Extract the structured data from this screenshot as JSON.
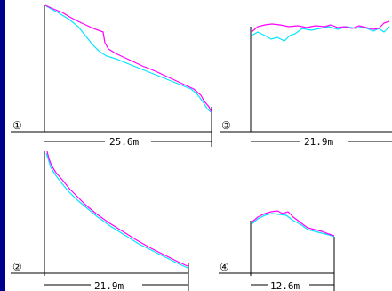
{
  "colors": {
    "background_frame": "#00008e",
    "panel": "#ffffff",
    "axis": "#000000",
    "series_magenta": "#ff00ff",
    "series_cyan": "#00e5ff"
  },
  "profiles": [
    {
      "id": "profile-1",
      "number": "①",
      "span_label": "25.6m"
    },
    {
      "id": "profile-2",
      "number": "②",
      "span_label": "21.9m"
    },
    {
      "id": "profile-3",
      "number": "③",
      "span_label": "21.9m"
    },
    {
      "id": "profile-4",
      "number": "④",
      "span_label": "12.6m"
    }
  ]
}
